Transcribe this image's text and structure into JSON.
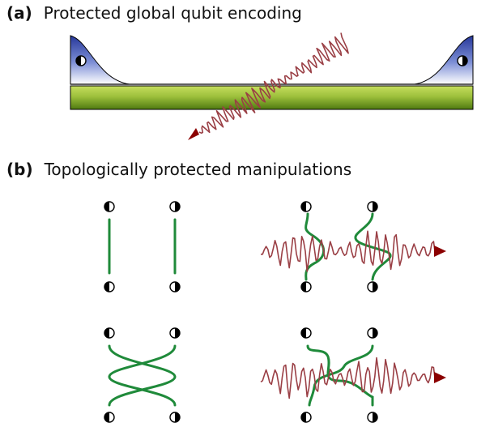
{
  "panel_a": {
    "tag": "(a)",
    "title": "Protected global qubit encoding"
  },
  "panel_b": {
    "tag": "(b)",
    "title": "Topologically protected manipulations"
  },
  "colors": {
    "wire": "#1f8a3a",
    "wave_dark": "#8a1f1f",
    "wave_light": "#c9a0a0",
    "arrow": "#8b0000",
    "bar_top": "#a8c840",
    "bar_bottom": "#4f7a10",
    "bump_fill": "#2c3f9e"
  },
  "icons": [
    "half-filled-circle-icon",
    "wave-arrow-icon"
  ]
}
